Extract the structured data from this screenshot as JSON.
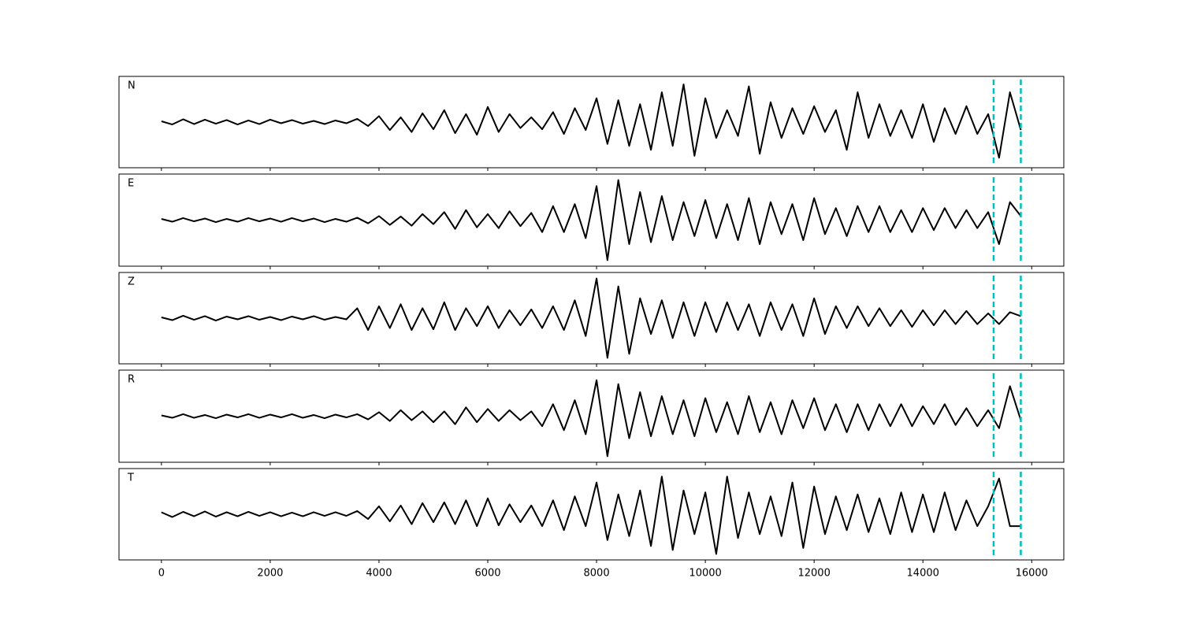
{
  "chart_data": {
    "type": "line",
    "subplots": true,
    "x": [
      0,
      200,
      400,
      600,
      800,
      1000,
      1200,
      1400,
      1600,
      1800,
      2000,
      2200,
      2400,
      2600,
      2800,
      3000,
      3200,
      3400,
      3600,
      3800,
      4000,
      4200,
      4400,
      4600,
      4800,
      5000,
      5200,
      5400,
      5600,
      5800,
      6000,
      6200,
      6400,
      6600,
      6800,
      7000,
      7200,
      7400,
      7600,
      7800,
      8000,
      8200,
      8400,
      8600,
      8800,
      9000,
      9200,
      9400,
      9600,
      9800,
      10000,
      10200,
      10400,
      10600,
      10800,
      11000,
      11200,
      11400,
      11600,
      11800,
      12000,
      12200,
      12400,
      12600,
      12800,
      13000,
      13200,
      13400,
      13600,
      13800,
      14000,
      14200,
      14400,
      14600,
      14800,
      15000,
      15200,
      15400,
      15600,
      15800
    ],
    "xlim": [
      -780,
      16590
    ],
    "xticks": [
      0,
      2000,
      4000,
      6000,
      8000,
      10000,
      12000,
      14000,
      16000
    ],
    "ylim": [
      -1.15,
      1.15
    ],
    "vlines": [
      15300,
      15800
    ],
    "vline_color": "#00bfbf",
    "series": [
      {
        "name": "N",
        "color": "#000000",
        "values": [
          0.02,
          -0.06,
          0.07,
          -0.05,
          0.06,
          -0.04,
          0.05,
          -0.06,
          0.04,
          -0.05,
          0.06,
          -0.03,
          0.05,
          -0.04,
          0.03,
          -0.05,
          0.04,
          -0.03,
          0.08,
          -0.1,
          0.15,
          -0.2,
          0.12,
          -0.25,
          0.22,
          -0.18,
          0.3,
          -0.28,
          0.2,
          -0.32,
          0.38,
          -0.25,
          0.2,
          -0.15,
          0.12,
          -0.18,
          0.25,
          -0.3,
          0.35,
          -0.2,
          0.6,
          -0.55,
          0.55,
          -0.6,
          0.45,
          -0.7,
          0.75,
          -0.6,
          0.95,
          -0.85,
          0.6,
          -0.4,
          0.3,
          -0.35,
          0.9,
          -0.8,
          0.5,
          -0.4,
          0.35,
          -0.3,
          0.4,
          -0.25,
          0.3,
          -0.7,
          0.75,
          -0.4,
          0.45,
          -0.35,
          0.3,
          -0.4,
          0.45,
          -0.5,
          0.35,
          -0.3,
          0.4,
          -0.3,
          0.2,
          -0.9,
          0.75,
          -0.2
        ]
      },
      {
        "name": "E",
        "color": "#000000",
        "values": [
          0.03,
          -0.04,
          0.05,
          -0.03,
          0.04,
          -0.05,
          0.03,
          -0.04,
          0.05,
          -0.03,
          0.04,
          -0.04,
          0.05,
          -0.03,
          0.04,
          -0.05,
          0.03,
          -0.04,
          0.06,
          -0.08,
          0.1,
          -0.12,
          0.09,
          -0.14,
          0.15,
          -0.1,
          0.2,
          -0.22,
          0.25,
          -0.18,
          0.15,
          -0.2,
          0.22,
          -0.15,
          0.18,
          -0.3,
          0.35,
          -0.3,
          0.4,
          -0.45,
          0.85,
          -1.0,
          1.0,
          -0.6,
          0.7,
          -0.55,
          0.6,
          -0.5,
          0.45,
          -0.4,
          0.5,
          -0.45,
          0.4,
          -0.5,
          0.55,
          -0.6,
          0.45,
          -0.35,
          0.4,
          -0.5,
          0.55,
          -0.35,
          0.3,
          -0.4,
          0.35,
          -0.3,
          0.35,
          -0.3,
          0.25,
          -0.3,
          0.3,
          -0.25,
          0.3,
          -0.2,
          0.25,
          -0.2,
          0.2,
          -0.6,
          0.45,
          0.1
        ]
      },
      {
        "name": "Z",
        "color": "#000000",
        "values": [
          0.02,
          -0.05,
          0.06,
          -0.04,
          0.05,
          -0.06,
          0.04,
          -0.03,
          0.05,
          -0.04,
          0.03,
          -0.05,
          0.04,
          -0.03,
          0.05,
          -0.04,
          0.03,
          -0.03,
          0.25,
          -0.3,
          0.3,
          -0.25,
          0.35,
          -0.3,
          0.25,
          -0.28,
          0.4,
          -0.3,
          0.25,
          -0.2,
          0.3,
          -0.25,
          0.2,
          -0.18,
          0.22,
          -0.25,
          0.3,
          -0.3,
          0.45,
          -0.45,
          1.0,
          -1.0,
          0.8,
          -0.9,
          0.5,
          -0.4,
          0.45,
          -0.5,
          0.4,
          -0.45,
          0.4,
          -0.35,
          0.4,
          -0.3,
          0.35,
          -0.45,
          0.4,
          -0.3,
          0.35,
          -0.45,
          0.5,
          -0.4,
          0.3,
          -0.25,
          0.3,
          -0.2,
          0.25,
          -0.2,
          0.2,
          -0.22,
          0.2,
          -0.18,
          0.2,
          -0.15,
          0.18,
          -0.15,
          0.12,
          -0.15,
          0.15,
          0.05
        ]
      },
      {
        "name": "R",
        "color": "#000000",
        "values": [
          0.02,
          -0.04,
          0.05,
          -0.04,
          0.03,
          -0.05,
          0.04,
          -0.03,
          0.05,
          -0.04,
          0.04,
          -0.03,
          0.05,
          -0.04,
          0.03,
          -0.05,
          0.04,
          -0.03,
          0.05,
          -0.08,
          0.1,
          -0.12,
          0.15,
          -0.1,
          0.12,
          -0.15,
          0.12,
          -0.2,
          0.22,
          -0.15,
          0.18,
          -0.12,
          0.15,
          -0.1,
          0.12,
          -0.25,
          0.3,
          -0.35,
          0.4,
          -0.45,
          0.9,
          -1.0,
          0.8,
          -0.55,
          0.6,
          -0.5,
          0.5,
          -0.45,
          0.4,
          -0.5,
          0.45,
          -0.4,
          0.35,
          -0.45,
          0.5,
          -0.4,
          0.35,
          -0.45,
          0.4,
          -0.3,
          0.45,
          -0.35,
          0.3,
          -0.4,
          0.3,
          -0.35,
          0.3,
          -0.25,
          0.3,
          -0.25,
          0.25,
          -0.2,
          0.3,
          -0.22,
          0.2,
          -0.25,
          0.15,
          -0.3,
          0.75,
          -0.1
        ]
      },
      {
        "name": "T",
        "color": "#000000",
        "values": [
          0.05,
          -0.07,
          0.06,
          -0.05,
          0.07,
          -0.06,
          0.05,
          -0.05,
          0.06,
          -0.04,
          0.05,
          -0.05,
          0.04,
          -0.05,
          0.05,
          -0.04,
          0.05,
          -0.04,
          0.08,
          -0.12,
          0.2,
          -0.18,
          0.22,
          -0.25,
          0.28,
          -0.2,
          0.3,
          -0.25,
          0.35,
          -0.3,
          0.4,
          -0.28,
          0.25,
          -0.2,
          0.22,
          -0.3,
          0.35,
          -0.4,
          0.45,
          -0.3,
          0.8,
          -0.65,
          0.5,
          -0.55,
          0.6,
          -0.8,
          0.95,
          -0.9,
          0.6,
          -0.5,
          0.55,
          -1.0,
          0.95,
          -0.6,
          0.55,
          -0.5,
          0.45,
          -0.55,
          0.8,
          -0.85,
          0.7,
          -0.5,
          0.45,
          -0.4,
          0.5,
          -0.45,
          0.4,
          -0.5,
          0.55,
          -0.45,
          0.5,
          -0.45,
          0.55,
          -0.4,
          0.35,
          -0.3,
          0.2,
          0.9,
          -0.3,
          -0.3
        ]
      }
    ]
  }
}
